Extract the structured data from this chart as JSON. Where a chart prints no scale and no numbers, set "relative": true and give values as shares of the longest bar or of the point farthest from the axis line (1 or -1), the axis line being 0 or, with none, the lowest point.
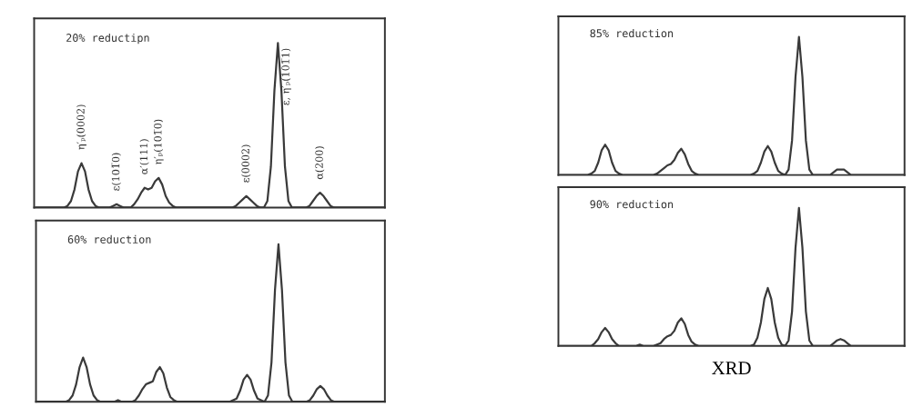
{
  "chart_data": [
    {
      "type": "line",
      "title": "20% reductipn",
      "relative": true,
      "color": "#3a3a3a",
      "categories": [
        null,
        null,
        null,
        null,
        null,
        null,
        null,
        null,
        null,
        null,
        null,
        null,
        null,
        null,
        null,
        null,
        null,
        null,
        null,
        null,
        null,
        null,
        null,
        null,
        null,
        null,
        null,
        null,
        null,
        null,
        null,
        null,
        null,
        null,
        null,
        null,
        null,
        null,
        null,
        null,
        null,
        null,
        null,
        null,
        null,
        null,
        null,
        null,
        null,
        null,
        null,
        null,
        null,
        null,
        null,
        null,
        null,
        null,
        null,
        null,
        null,
        null,
        null,
        null,
        null,
        null,
        null,
        null,
        null,
        null,
        null,
        null,
        null,
        null,
        null,
        null,
        null,
        null,
        null,
        null,
        null,
        null,
        null,
        null,
        null,
        null,
        null,
        null,
        null,
        null,
        null,
        null,
        null,
        null,
        null,
        null,
        null,
        null,
        null,
        null
      ],
      "values": [
        0,
        0,
        0,
        0,
        0,
        0,
        0,
        0,
        0,
        0.01,
        0.04,
        0.11,
        0.22,
        0.27,
        0.22,
        0.11,
        0.04,
        0.01,
        0,
        0,
        0,
        0,
        0.01,
        0.02,
        0.01,
        0,
        0,
        0,
        0.02,
        0.05,
        0.09,
        0.12,
        0.11,
        0.12,
        0.16,
        0.18,
        0.14,
        0.07,
        0.03,
        0.01,
        0,
        0,
        0,
        0,
        0,
        0,
        0,
        0,
        0,
        0,
        0,
        0,
        0,
        0,
        0,
        0,
        0,
        0.01,
        0.03,
        0.05,
        0.07,
        0.05,
        0.03,
        0.01,
        0,
        0,
        0.04,
        0.25,
        0.71,
        1,
        0.71,
        0.25,
        0.04,
        0,
        0,
        0,
        0,
        0,
        0.01,
        0.04,
        0.07,
        0.09,
        0.07,
        0.04,
        0.01,
        0,
        0,
        0,
        0,
        0,
        0,
        0,
        0,
        0,
        0,
        0,
        0,
        0,
        0,
        0
      ],
      "annotations": [
        "η′ₚ(0002)",
        "ε(101̅0)",
        "α′(111)",
        "η′ₚ(101̅0)",
        "ε(0002)",
        "ε, η′ₚ(101̅1)",
        "α(200)"
      ]
    },
    {
      "type": "line",
      "title": "60% reduction",
      "relative": true,
      "color": "#3a3a3a",
      "categories": [
        null,
        null,
        null,
        null,
        null,
        null,
        null,
        null,
        null,
        null,
        null,
        null,
        null,
        null,
        null,
        null,
        null,
        null,
        null,
        null,
        null,
        null,
        null,
        null,
        null,
        null,
        null,
        null,
        null,
        null,
        null,
        null,
        null,
        null,
        null,
        null,
        null,
        null,
        null,
        null,
        null,
        null,
        null,
        null,
        null,
        null,
        null,
        null,
        null,
        null,
        null,
        null,
        null,
        null,
        null,
        null,
        null,
        null,
        null,
        null,
        null,
        null,
        null,
        null,
        null,
        null,
        null,
        null,
        null,
        null,
        null,
        null,
        null,
        null,
        null,
        null,
        null,
        null,
        null,
        null,
        null,
        null,
        null,
        null,
        null,
        null,
        null,
        null,
        null,
        null,
        null,
        null,
        null,
        null,
        null,
        null,
        null,
        null,
        null,
        null
      ],
      "values": [
        0,
        0,
        0,
        0,
        0,
        0,
        0,
        0,
        0,
        0.01,
        0.04,
        0.11,
        0.22,
        0.28,
        0.22,
        0.11,
        0.04,
        0.01,
        0,
        0,
        0,
        0,
        0,
        0.01,
        0,
        0,
        0,
        0,
        0.01,
        0.04,
        0.08,
        0.11,
        0.12,
        0.13,
        0.19,
        0.22,
        0.18,
        0.09,
        0.03,
        0.01,
        0,
        0,
        0,
        0,
        0,
        0,
        0,
        0,
        0,
        0,
        0,
        0,
        0,
        0,
        0,
        0,
        0.01,
        0.02,
        0.07,
        0.14,
        0.17,
        0.14,
        0.07,
        0.02,
        0.01,
        0,
        0.04,
        0.25,
        0.71,
        1,
        0.71,
        0.25,
        0.04,
        0,
        0,
        0,
        0,
        0,
        0.01,
        0.04,
        0.08,
        0.1,
        0.08,
        0.04,
        0.01,
        0,
        0,
        0,
        0,
        0,
        0,
        0,
        0,
        0,
        0,
        0,
        0,
        0,
        0,
        0
      ]
    },
    {
      "type": "line",
      "title": "85% reduction",
      "relative": true,
      "color": "#3a3a3a",
      "categories": [
        null,
        null,
        null,
        null,
        null,
        null,
        null,
        null,
        null,
        null,
        null,
        null,
        null,
        null,
        null,
        null,
        null,
        null,
        null,
        null,
        null,
        null,
        null,
        null,
        null,
        null,
        null,
        null,
        null,
        null,
        null,
        null,
        null,
        null,
        null,
        null,
        null,
        null,
        null,
        null,
        null,
        null,
        null,
        null,
        null,
        null,
        null,
        null,
        null,
        null,
        null,
        null,
        null,
        null,
        null,
        null,
        null,
        null,
        null,
        null,
        null,
        null,
        null,
        null,
        null,
        null,
        null,
        null,
        null,
        null,
        null,
        null,
        null,
        null,
        null,
        null,
        null,
        null,
        null,
        null,
        null,
        null,
        null,
        null,
        null,
        null,
        null,
        null,
        null,
        null,
        null,
        null,
        null,
        null,
        null,
        null,
        null,
        null,
        null,
        null
      ],
      "values": [
        0,
        0,
        0,
        0,
        0,
        0,
        0,
        0,
        0,
        0.01,
        0.03,
        0.09,
        0.18,
        0.22,
        0.18,
        0.09,
        0.03,
        0.01,
        0,
        0,
        0,
        0,
        0,
        0,
        0,
        0,
        0,
        0,
        0.01,
        0.03,
        0.05,
        0.07,
        0.08,
        0.11,
        0.16,
        0.19,
        0.15,
        0.08,
        0.03,
        0.01,
        0,
        0,
        0,
        0,
        0,
        0,
        0,
        0,
        0,
        0,
        0,
        0,
        0,
        0,
        0,
        0,
        0.01,
        0.03,
        0.09,
        0.17,
        0.21,
        0.17,
        0.09,
        0.03,
        0.01,
        0,
        0.04,
        0.25,
        0.71,
        1,
        0.71,
        0.25,
        0.04,
        0,
        0,
        0,
        0,
        0,
        0,
        0.02,
        0.04,
        0.04,
        0.04,
        0.02,
        0,
        0,
        0,
        0,
        0,
        0,
        0,
        0,
        0,
        0,
        0,
        0,
        0,
        0,
        0,
        0
      ]
    },
    {
      "type": "line",
      "title": "90% reduction",
      "xlabel": "XRD",
      "relative": true,
      "color": "#3a3a3a",
      "categories": [
        null,
        null,
        null,
        null,
        null,
        null,
        null,
        null,
        null,
        null,
        null,
        null,
        null,
        null,
        null,
        null,
        null,
        null,
        null,
        null,
        null,
        null,
        null,
        null,
        null,
        null,
        null,
        null,
        null,
        null,
        null,
        null,
        null,
        null,
        null,
        null,
        null,
        null,
        null,
        null,
        null,
        null,
        null,
        null,
        null,
        null,
        null,
        null,
        null,
        null,
        null,
        null,
        null,
        null,
        null,
        null,
        null,
        null,
        null,
        null,
        null,
        null,
        null,
        null,
        null,
        null,
        null,
        null,
        null,
        null,
        null,
        null,
        null,
        null,
        null,
        null,
        null,
        null,
        null,
        null,
        null,
        null,
        null,
        null,
        null,
        null,
        null,
        null,
        null,
        null,
        null,
        null,
        null,
        null,
        null,
        null,
        null,
        null,
        null,
        null
      ],
      "values": [
        0,
        0,
        0,
        0,
        0,
        0,
        0,
        0,
        0,
        0,
        0.02,
        0.05,
        0.1,
        0.13,
        0.1,
        0.05,
        0.02,
        0,
        0,
        0,
        0,
        0,
        0,
        0.01,
        0,
        0,
        0,
        0,
        0.01,
        0.02,
        0.05,
        0.07,
        0.08,
        0.11,
        0.17,
        0.2,
        0.16,
        0.08,
        0.03,
        0.01,
        0,
        0,
        0,
        0,
        0,
        0,
        0,
        0,
        0,
        0,
        0,
        0,
        0,
        0,
        0,
        0,
        0.01,
        0.06,
        0.17,
        0.34,
        0.42,
        0.34,
        0.17,
        0.06,
        0.01,
        0,
        0.04,
        0.25,
        0.71,
        1,
        0.71,
        0.25,
        0.04,
        0,
        0,
        0,
        0,
        0,
        0,
        0.02,
        0.04,
        0.05,
        0.04,
        0.02,
        0,
        0,
        0,
        0,
        0,
        0,
        0,
        0,
        0,
        0,
        0,
        0,
        0,
        0,
        0,
        0
      ]
    }
  ]
}
